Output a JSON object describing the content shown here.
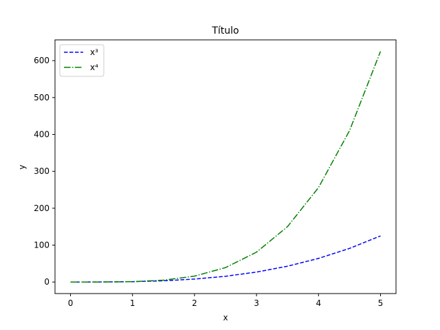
{
  "chart_data": {
    "type": "line",
    "title": "Título",
    "xlabel": "x",
    "ylabel": "y",
    "xlim": [
      -0.25,
      5.25
    ],
    "ylim": [
      -31.25,
      656.25
    ],
    "xticks": [
      "0",
      "1",
      "2",
      "3",
      "4",
      "5"
    ],
    "yticks": [
      "0",
      "100",
      "200",
      "300",
      "400",
      "500",
      "600"
    ],
    "x": [
      0,
      0.5,
      1,
      1.5,
      2,
      2.5,
      3,
      3.5,
      4,
      4.5,
      5
    ],
    "series": [
      {
        "name": "x³",
        "color": "#0000ff",
        "linestyle": "dashed",
        "values": [
          0,
          0.125,
          1,
          3.375,
          8,
          15.625,
          27,
          42.875,
          64,
          91.125,
          125
        ]
      },
      {
        "name": "x⁴",
        "color": "#008000",
        "linestyle": "dashdot",
        "values": [
          0,
          0.0625,
          1,
          5.0625,
          16,
          39.0625,
          81,
          150.0625,
          256,
          410.0625,
          625
        ]
      }
    ],
    "legend": "upper-left",
    "grid": false
  }
}
